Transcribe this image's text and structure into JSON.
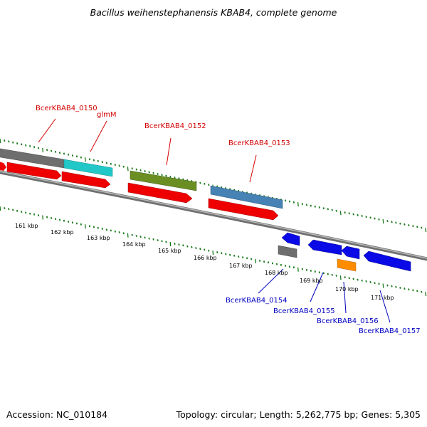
{
  "title": "Bacillus weihenstephanensis KBAB4, complete genome",
  "footer": {
    "accession": "Accession: NC_010184",
    "summary": "Topology: circular; Length: 5,262,775 bp; Genes: 5,305"
  },
  "colors": {
    "forward_gene_label": "#d40000",
    "reverse_gene_label": "#0000c0",
    "tick": "#1a7a1a",
    "backbone": "#8c8c8c",
    "cds": "#ee0000",
    "blue_gene": "#0a0ae6"
  },
  "kbp_labels": [
    "161 kbp",
    "162 kbp",
    "163 kbp",
    "164 kbp",
    "165 kbp",
    "166 kbp",
    "167 kbp",
    "168 kbp",
    "169 kbp",
    "170 kbp",
    "171 kbp"
  ],
  "genes_forward": [
    {
      "label": "BcerKBAB4_0150",
      "color": "#6e6e6e"
    },
    {
      "label": "glmM",
      "color": "#22c8c8"
    },
    {
      "label": "BcerKBAB4_0152",
      "color": "#6b8e23"
    },
    {
      "label": "BcerKBAB4_0153",
      "color": "#4682b4"
    }
  ],
  "genes_reverse": [
    {
      "label": "BcerKBAB4_0154",
      "color": "#6e6e6e"
    },
    {
      "label": "BcerKBAB4_0155",
      "color": "#0a0ae6"
    },
    {
      "label": "BcerKBAB4_0156",
      "color": "#ff8c00"
    },
    {
      "label": "BcerKBAB4_0157",
      "color": "#0a0ae6"
    }
  ]
}
